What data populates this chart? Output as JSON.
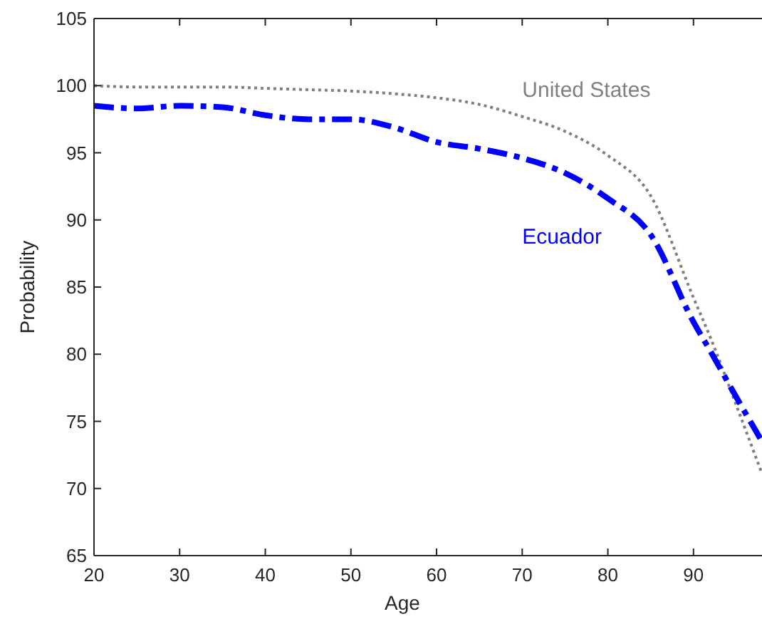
{
  "chart_data": {
    "type": "line",
    "xlabel": "Age",
    "ylabel": "Probability",
    "xlim": [
      20,
      98
    ],
    "xticks": [
      20,
      30,
      40,
      50,
      60,
      70,
      80,
      90
    ],
    "ylim": [
      65,
      105
    ],
    "yticks": [
      65,
      70,
      75,
      80,
      85,
      90,
      95,
      100,
      105
    ],
    "grid": false,
    "marker": "none",
    "x": [
      20,
      25,
      30,
      35,
      40,
      45,
      50,
      55,
      60,
      65,
      70,
      75,
      80,
      85,
      90,
      92,
      95,
      98
    ],
    "series": [
      {
        "name": "United States",
        "color": "#808080",
        "line_style": "dotted",
        "values": [
          100,
          99.9,
          99.9,
          99.9,
          99.8,
          99.7,
          99.6,
          99.4,
          99.1,
          98.6,
          97.7,
          96.6,
          94.8,
          91.8,
          84.2,
          81.2,
          76.2,
          71.1
        ]
      },
      {
        "name": "Ecuador",
        "color": "#0000ff",
        "line_style": "dashed",
        "values": [
          98.5,
          98.3,
          98.5,
          98.4,
          97.8,
          97.5,
          97.5,
          96.9,
          95.8,
          95.3,
          94.6,
          93.5,
          91.6,
          88.9,
          82.4,
          80.2,
          76.8,
          73.5
        ]
      }
    ]
  }
}
